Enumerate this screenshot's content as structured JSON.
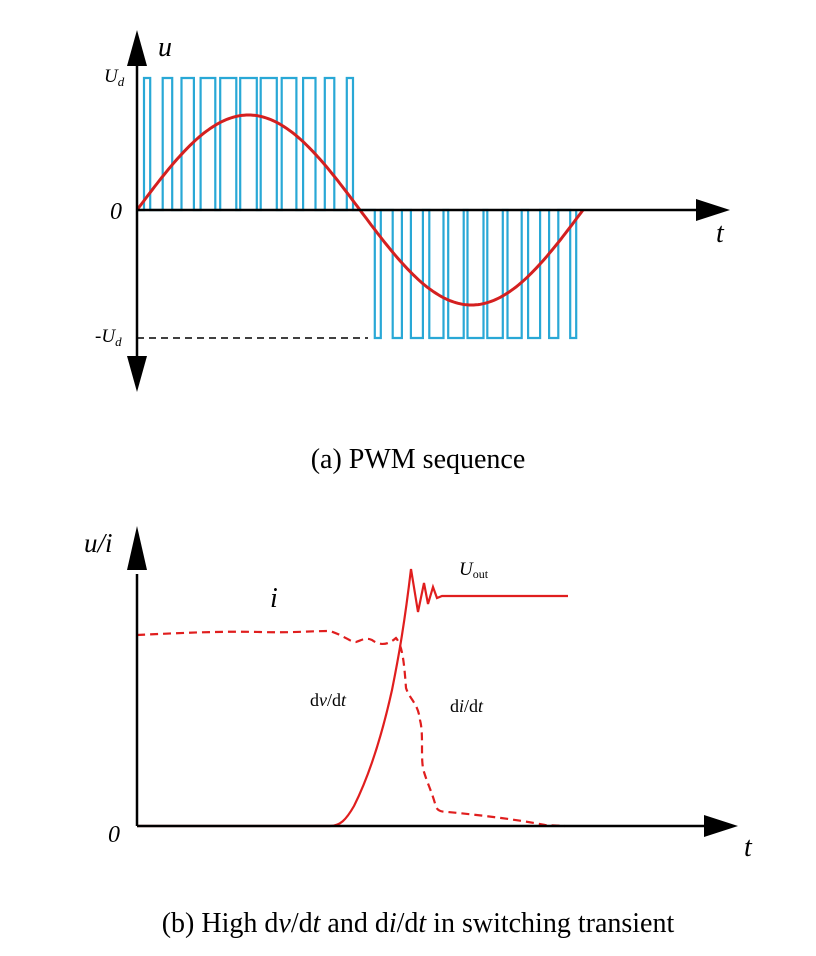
{
  "colors": {
    "pwm": "#29a8d6",
    "sine": "#d42020",
    "axis": "#000000",
    "curve": "#e01e1e"
  },
  "panel_a": {
    "y_axis_label": "u",
    "x_axis_label": "t",
    "origin_label": "0",
    "pos_level": {
      "main": "U",
      "sub": "d"
    },
    "neg_level": {
      "main": "-U",
      "sub": "d"
    },
    "caption": "(a) PWM sequence"
  },
  "panel_b": {
    "y_axis_label": "u/i",
    "x_axis_label": "t",
    "origin_label": "0",
    "current_label": "i",
    "uout_label": {
      "main": "U",
      "sub": "out"
    },
    "dvdt_label": {
      "d1": "d",
      "v": "v",
      "slash": "/d",
      "t": "t"
    },
    "didt_label": {
      "d1": "d",
      "i": "i",
      "slash": "/d",
      "t": "t"
    },
    "caption": {
      "p1": "(b) High d",
      "v": "v",
      "p2": "/d",
      "t1": "t",
      "p3": " and d",
      "i": "i",
      "p4": "/d",
      "t2": "t",
      "p5": " in switching transient"
    }
  }
}
